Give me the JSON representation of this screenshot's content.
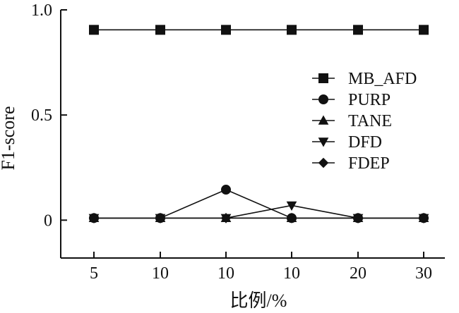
{
  "chart_data": {
    "type": "line",
    "categories": [
      "5",
      "10",
      "10",
      "10",
      "20",
      "30"
    ],
    "xlabel": "比例/%",
    "ylabel": "F1-score",
    "ylim": [
      -0.18,
      1.0
    ],
    "yticks": [
      0,
      0.5,
      1.0
    ],
    "ytick_labels": [
      "0",
      "0.5",
      "1.0"
    ],
    "grid": false,
    "legend_position": "right",
    "series": [
      {
        "name": "MB_AFD",
        "marker": "square",
        "values": [
          0.905,
          0.905,
          0.905,
          0.905,
          0.905,
          0.905
        ]
      },
      {
        "name": "PURP",
        "marker": "circle",
        "values": [
          0.01,
          0.01,
          0.145,
          0.01,
          0.01,
          0.01
        ]
      },
      {
        "name": "TANE",
        "marker": "triangle-up",
        "values": [
          0.01,
          0.01,
          0.01,
          0.01,
          0.01,
          0.01
        ]
      },
      {
        "name": "DFD",
        "marker": "triangle-down",
        "values": [
          0.01,
          0.01,
          0.01,
          0.07,
          0.01,
          0.01
        ]
      },
      {
        "name": "FDEP",
        "marker": "diamond",
        "values": [
          0.01,
          0.01,
          0.01,
          0.01,
          0.01,
          0.01
        ]
      }
    ]
  }
}
